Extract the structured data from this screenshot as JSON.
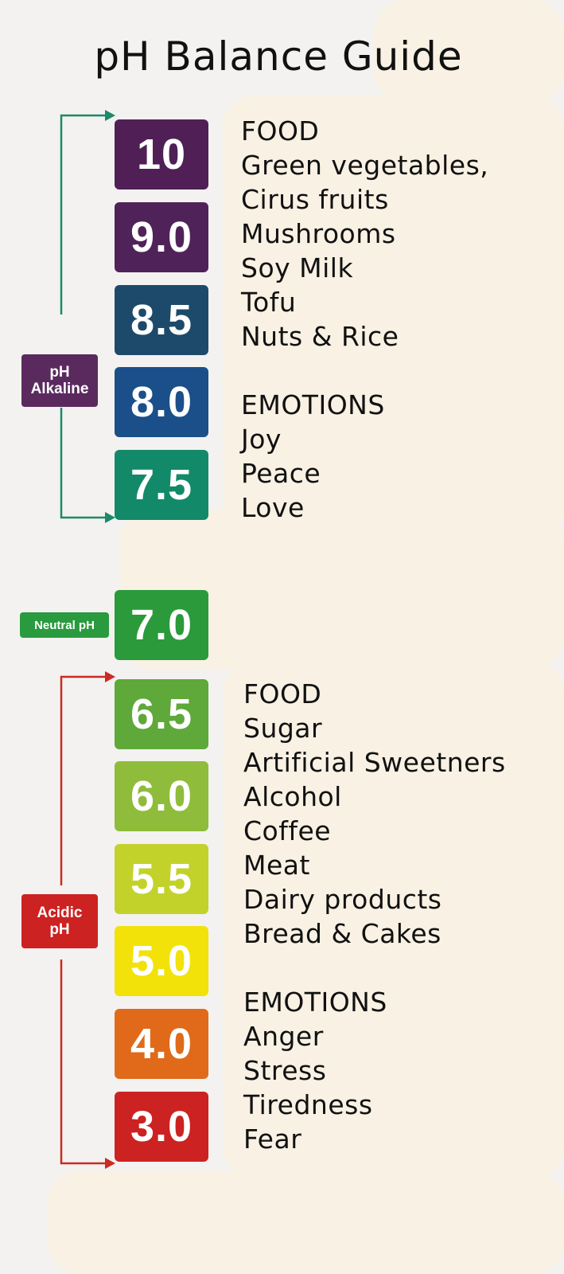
{
  "title": "pH Balance Guide",
  "alkaline": {
    "tag_line1": "pH",
    "tag_line2": "Alkaline",
    "tag_color": "#5a2a5e",
    "arrow_color": "#1a8a6a",
    "levels": [
      {
        "label": "10",
        "color": "#4f1f56"
      },
      {
        "label": "9.0",
        "color": "#50225a"
      },
      {
        "label": "8.5",
        "color": "#1d4a6a"
      },
      {
        "label": "8.0",
        "color": "#1a4f8a"
      },
      {
        "label": "7.5",
        "color": "#128a6a"
      }
    ],
    "food_heading": "FOOD",
    "foods": [
      "Green vegetables,",
      "Cirus fruits",
      "Mushrooms",
      "Soy Milk",
      "Tofu",
      "Nuts & Rice"
    ],
    "emotions_heading": "EMOTIONS",
    "emotions": [
      "Joy",
      "Peace",
      "Love"
    ]
  },
  "neutral": {
    "tag": "Neutral pH",
    "tag_color": "#2a9a3e",
    "level": {
      "label": "7.0",
      "color": "#2a9a3a"
    }
  },
  "acidic": {
    "tag_line1": "Acidic",
    "tag_line2": "pH",
    "tag_color": "#cc2222",
    "arrow_color": "#cc2a22",
    "levels": [
      {
        "label": "6.5",
        "color": "#5fa83a"
      },
      {
        "label": "6.0",
        "color": "#8fbc3a"
      },
      {
        "label": "5.5",
        "color": "#c2d22a"
      },
      {
        "label": "5.0",
        "color": "#f2e20a"
      },
      {
        "label": "4.0",
        "color": "#e06a1a"
      },
      {
        "label": "3.0",
        "color": "#cc2222"
      }
    ],
    "food_heading": "FOOD",
    "foods": [
      "Sugar",
      "Artificial Sweetners",
      "Alcohol",
      "Coffee",
      "Meat",
      "Dairy products",
      "Bread & Cakes"
    ],
    "emotions_heading": "EMOTIONS",
    "emotions": [
      "Anger",
      "Stress",
      "Tiredness",
      "Fear"
    ]
  }
}
